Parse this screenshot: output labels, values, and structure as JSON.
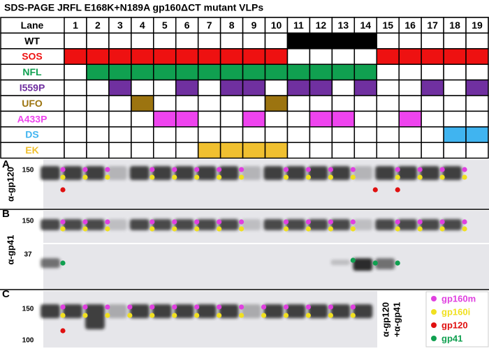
{
  "title": "SDS-PAGE JRFL E168K+N189A gp160ΔCT mutant VLPs",
  "table": {
    "header": "Lane",
    "lanes": [
      "1",
      "2",
      "3",
      "4",
      "5",
      "6",
      "7",
      "8",
      "9",
      "10",
      "11",
      "12",
      "13",
      "14",
      "15",
      "16",
      "17",
      "18",
      "19"
    ],
    "rows": [
      {
        "label": "WT",
        "color": "#000000",
        "filled": [
          false,
          false,
          false,
          false,
          false,
          false,
          false,
          false,
          false,
          false,
          true,
          true,
          true,
          true,
          false,
          false,
          false,
          false,
          false
        ]
      },
      {
        "label": "SOS",
        "color": "#ee1111",
        "filled": [
          true,
          true,
          true,
          true,
          true,
          true,
          true,
          true,
          true,
          true,
          false,
          false,
          false,
          false,
          true,
          true,
          true,
          true,
          true
        ]
      },
      {
        "label": "NFL",
        "color": "#10a050",
        "filled": [
          false,
          true,
          true,
          true,
          true,
          true,
          true,
          true,
          true,
          true,
          true,
          true,
          true,
          true,
          false,
          false,
          false,
          false,
          false
        ]
      },
      {
        "label": "I559P",
        "color": "#7030a0",
        "filled": [
          false,
          false,
          true,
          false,
          false,
          true,
          false,
          true,
          true,
          false,
          true,
          true,
          false,
          true,
          false,
          false,
          true,
          false,
          true
        ]
      },
      {
        "label": "UFO",
        "color": "#9c7410",
        "filled": [
          false,
          false,
          false,
          true,
          false,
          false,
          false,
          false,
          false,
          true,
          false,
          false,
          false,
          false,
          false,
          false,
          false,
          false,
          false
        ]
      },
      {
        "label": "A433P",
        "color": "#ee44ee",
        "filled": [
          false,
          false,
          false,
          false,
          true,
          true,
          false,
          false,
          true,
          false,
          false,
          true,
          true,
          false,
          false,
          true,
          false,
          false,
          false
        ]
      },
      {
        "label": "DS",
        "color": "#40b4f0",
        "filled": [
          false,
          false,
          false,
          false,
          false,
          false,
          false,
          false,
          false,
          false,
          false,
          false,
          false,
          false,
          false,
          false,
          false,
          true,
          true
        ]
      },
      {
        "label": "EK",
        "color": "#f0c030",
        "filled": [
          false,
          false,
          false,
          false,
          false,
          false,
          true,
          true,
          true,
          true,
          false,
          false,
          false,
          false,
          false,
          false,
          false,
          false,
          false
        ]
      }
    ]
  },
  "panels": [
    {
      "letter": "A",
      "antibody": "α-gp120",
      "markers": [
        "150"
      ]
    },
    {
      "letter": "B",
      "antibody": "α-gp41",
      "markers": [
        "150",
        "37"
      ]
    },
    {
      "letter": "C",
      "markers": [
        "150",
        "100"
      ]
    }
  ],
  "panel_c_label": [
    "α-gp120",
    "+α-gp41"
  ],
  "legend": [
    {
      "label": "gp160m",
      "color": "#e040e0"
    },
    {
      "label": "gp160i",
      "color": "#f0e020"
    },
    {
      "label": "gp120",
      "color": "#e01010"
    },
    {
      "label": "gp41",
      "color": "#10a050"
    }
  ]
}
